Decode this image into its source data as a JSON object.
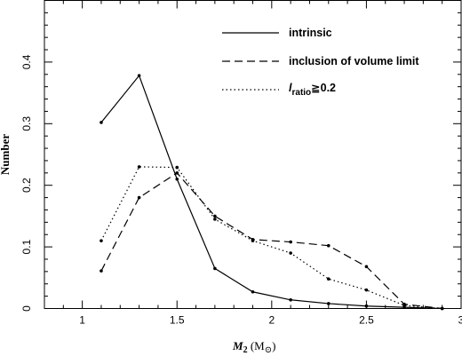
{
  "chart_data": {
    "type": "line",
    "xlabel_main": "M",
    "xlabel_sub": "2",
    "xlabel_unit_open": " (M",
    "xlabel_unit_sub": "⊙",
    "xlabel_unit_close": ")",
    "ylabel": "Number",
    "xlim": [
      0.8,
      3.0
    ],
    "ylim": [
      0,
      0.5
    ],
    "xticks": [
      {
        "value": 1,
        "label": "1"
      },
      {
        "value": 1.5,
        "label": "1.5"
      },
      {
        "value": 2,
        "label": "2"
      },
      {
        "value": 2.5,
        "label": "2.5"
      },
      {
        "value": 3,
        "label": "3"
      }
    ],
    "yticks": [
      {
        "value": 0,
        "label": "0"
      },
      {
        "value": 0.1,
        "label": "0.1"
      },
      {
        "value": 0.2,
        "label": "0.2"
      },
      {
        "value": 0.3,
        "label": "0.3"
      },
      {
        "value": 0.4,
        "label": "0.4"
      }
    ],
    "x": [
      1.1,
      1.3,
      1.5,
      1.7,
      1.9,
      2.1,
      2.3,
      2.5,
      2.7,
      2.9
    ],
    "series": [
      {
        "name": "intrinsic",
        "style": "solid",
        "values": [
          0.302,
          0.378,
          0.21,
          0.065,
          0.027,
          0.014,
          0.008,
          0.004,
          0.002,
          0.0
        ]
      },
      {
        "name": "inclusion of volume limit",
        "style": "dashed",
        "values": [
          0.061,
          0.18,
          0.22,
          0.15,
          0.112,
          0.108,
          0.102,
          0.068,
          0.007,
          0.0
        ]
      },
      {
        "name_main": "l",
        "name_sub": "ratio",
        "name_rest": "≧0.2",
        "style": "dotted",
        "values": [
          0.11,
          0.23,
          0.229,
          0.145,
          0.11,
          0.09,
          0.048,
          0.03,
          0.005,
          0.0
        ]
      }
    ],
    "legend_position": "top-right",
    "grid": false
  }
}
